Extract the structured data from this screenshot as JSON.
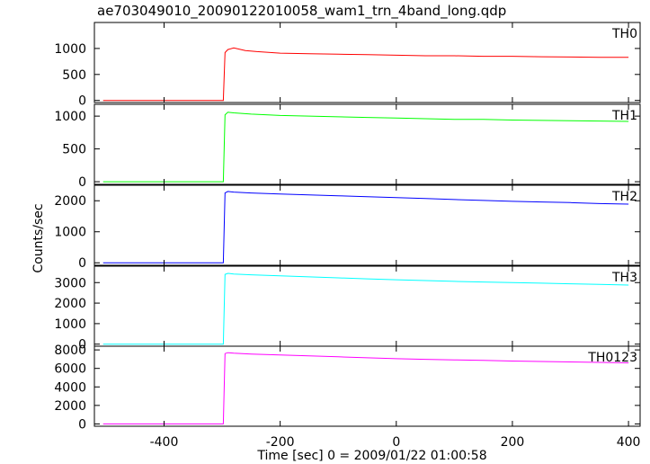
{
  "chart_data": {
    "type": "line",
    "title": "ae703049010_20090122010058_wam1_trn_4band_long.qdp",
    "xlabel": "Time [sec] 0 = 2009/01/22 01:00:58",
    "ylabel": "Counts/sec",
    "xlim": [
      -520,
      420
    ],
    "x_ticks": [
      -400,
      -200,
      0,
      200,
      400
    ],
    "grid": false,
    "panels": [
      {
        "name": "TH0",
        "color": "#ff0000",
        "ylim": [
          -40,
          1500
        ],
        "y_ticks": [
          0,
          500,
          1000
        ],
        "x": [
          -505,
          -298,
          -295,
          -290,
          -280,
          -260,
          -240,
          -200,
          -150,
          -100,
          -50,
          0,
          50,
          100,
          150,
          200,
          250,
          300,
          350,
          400
        ],
        "values": [
          0,
          0,
          920,
          980,
          1010,
          960,
          940,
          910,
          900,
          890,
          880,
          870,
          860,
          860,
          850,
          850,
          840,
          835,
          830,
          830
        ]
      },
      {
        "name": "TH1",
        "color": "#00ff00",
        "ylim": [
          -40,
          1180
        ],
        "y_ticks": [
          0,
          500,
          1000
        ],
        "x": [
          -505,
          -298,
          -295,
          -290,
          -280,
          -250,
          -200,
          -150,
          -100,
          -50,
          0,
          50,
          100,
          150,
          200,
          250,
          300,
          350,
          400
        ],
        "values": [
          0,
          0,
          1020,
          1060,
          1050,
          1030,
          1010,
          1000,
          990,
          980,
          970,
          960,
          950,
          950,
          940,
          935,
          930,
          925,
          920
        ]
      },
      {
        "name": "TH2",
        "color": "#0000ff",
        "ylim": [
          -80,
          2500
        ],
        "y_ticks": [
          0,
          1000,
          2000
        ],
        "x": [
          -505,
          -298,
          -295,
          -290,
          -280,
          -250,
          -200,
          -150,
          -100,
          -50,
          0,
          50,
          100,
          150,
          200,
          250,
          300,
          350,
          400
        ],
        "values": [
          0,
          0,
          2250,
          2300,
          2280,
          2250,
          2220,
          2190,
          2160,
          2130,
          2100,
          2070,
          2040,
          2010,
          1980,
          1960,
          1940,
          1910,
          1890
        ]
      },
      {
        "name": "TH3",
        "color": "#00ffff",
        "ylim": [
          -100,
          3800
        ],
        "y_ticks": [
          0,
          1000,
          2000,
          3000
        ],
        "x": [
          -505,
          -298,
          -295,
          -290,
          -280,
          -250,
          -200,
          -150,
          -100,
          -50,
          0,
          50,
          100,
          150,
          200,
          250,
          300,
          350,
          400
        ],
        "values": [
          0,
          0,
          3400,
          3450,
          3420,
          3380,
          3330,
          3280,
          3230,
          3180,
          3140,
          3100,
          3060,
          3030,
          3000,
          2970,
          2940,
          2910,
          2880
        ]
      },
      {
        "name": "TH0123",
        "color": "#ff00ff",
        "ylim": [
          -250,
          8400
        ],
        "y_ticks": [
          0,
          2000,
          4000,
          6000,
          8000
        ],
        "x": [
          -505,
          -298,
          -295,
          -290,
          -280,
          -250,
          -200,
          -150,
          -100,
          -50,
          0,
          50,
          100,
          150,
          200,
          250,
          300,
          350,
          400
        ],
        "values": [
          0,
          0,
          7600,
          7700,
          7650,
          7550,
          7450,
          7350,
          7250,
          7150,
          7050,
          6980,
          6920,
          6860,
          6800,
          6750,
          6700,
          6650,
          6600
        ]
      }
    ]
  }
}
